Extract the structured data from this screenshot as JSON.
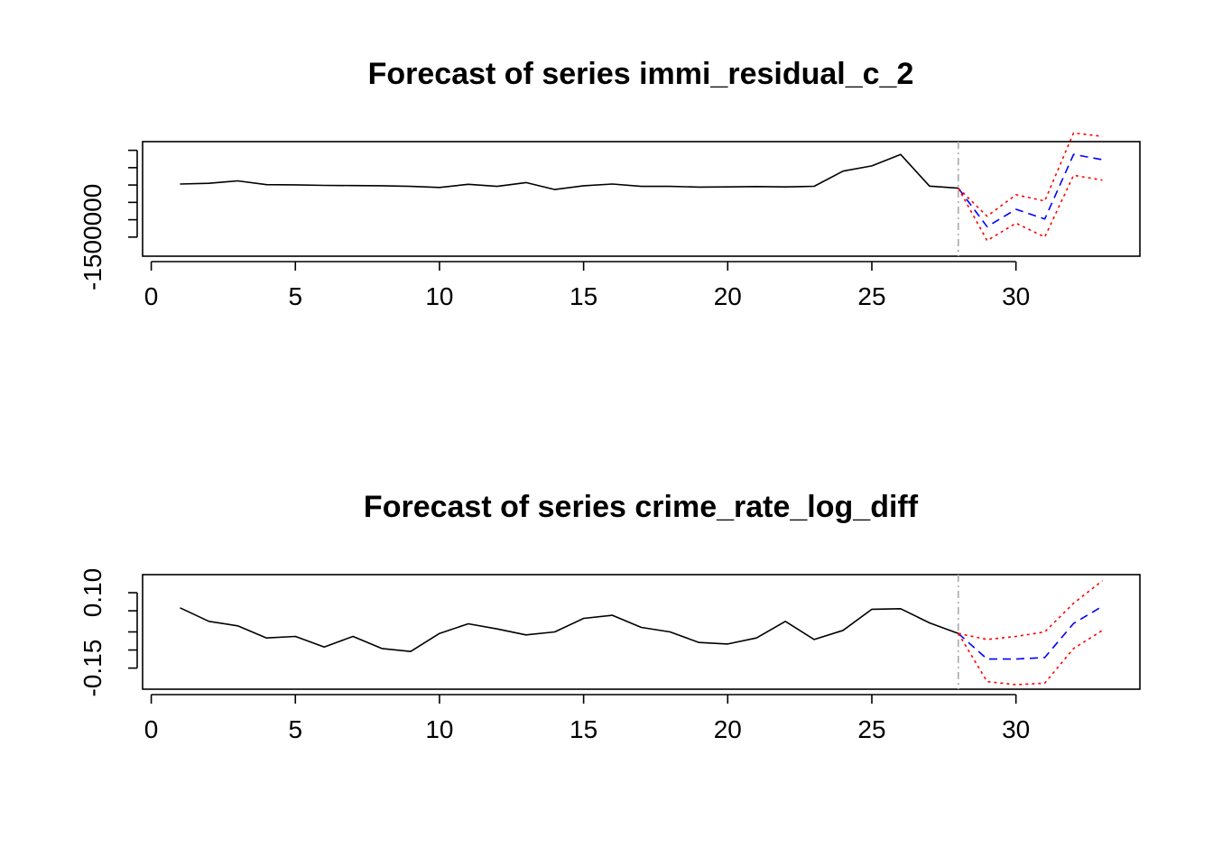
{
  "chart_data": [
    {
      "type": "line",
      "title": "Forecast of series immi_residual_c_2",
      "xlabel": "",
      "ylabel": "",
      "xlim": [
        -0.3,
        34.3
      ],
      "ylim": [
        -2050000,
        1250000
      ],
      "x_ticks": [
        0,
        5,
        10,
        15,
        20,
        25,
        30
      ],
      "y_ticks": [
        -1500000,
        -1000000,
        -500000,
        0,
        500000,
        1000000
      ],
      "y_tick_labels": [
        "-1500000",
        "",
        "",
        "",
        "",
        ""
      ],
      "forecast_origin": 28,
      "colors": {
        "observed": "#000000",
        "forecast": "#0000ff",
        "interval": "#ff0000",
        "origin": "#aaaaaa"
      },
      "series": [
        {
          "role": "observed",
          "x": [
            1,
            2,
            3,
            4,
            5,
            6,
            7,
            8,
            9,
            10,
            11,
            12,
            13,
            14,
            15,
            16,
            17,
            18,
            19,
            20,
            21,
            22,
            23,
            24,
            25,
            26,
            27,
            28
          ],
          "values": [
            30000,
            50000,
            120000,
            10000,
            5000,
            -10000,
            -15000,
            -20000,
            -40000,
            -70000,
            20000,
            -40000,
            70000,
            -130000,
            -20000,
            30000,
            -40000,
            -40000,
            -60000,
            -55000,
            -45000,
            -55000,
            -35000,
            400000,
            550000,
            880000,
            -30000,
            -90000
          ]
        },
        {
          "role": "forecast",
          "x": [
            28,
            29,
            30,
            31,
            32,
            33
          ],
          "values": [
            -90000,
            -1200000,
            -700000,
            -980000,
            880000,
            730000
          ]
        },
        {
          "role": "upper",
          "x": [
            28,
            29,
            30,
            31,
            32,
            33
          ],
          "values": [
            -90000,
            -900000,
            -280000,
            -460000,
            1500000,
            1400000
          ]
        },
        {
          "role": "lower",
          "x": [
            28,
            29,
            30,
            31,
            32,
            33
          ],
          "values": [
            -90000,
            -1600000,
            -1100000,
            -1500000,
            280000,
            140000
          ]
        }
      ]
    },
    {
      "type": "line",
      "title": "Forecast of series crime_rate_log_diff",
      "xlabel": "",
      "ylabel": "",
      "xlim": [
        -0.3,
        34.3
      ],
      "ylim": [
        -0.22,
        0.16
      ],
      "x_ticks": [
        0,
        5,
        10,
        15,
        20,
        25,
        30
      ],
      "y_ticks": [
        -0.15,
        -0.09,
        -0.03,
        0.04,
        0.1
      ],
      "y_tick_labels": [
        "-0.15",
        "",
        "",
        "",
        "0.10"
      ],
      "forecast_origin": 28,
      "colors": {
        "observed": "#000000",
        "forecast": "#0000ff",
        "interval": "#ff0000",
        "origin": "#aaaaaa"
      },
      "series": [
        {
          "role": "observed",
          "x": [
            1,
            2,
            3,
            4,
            5,
            6,
            7,
            8,
            9,
            10,
            11,
            12,
            13,
            14,
            15,
            16,
            17,
            18,
            19,
            20,
            21,
            22,
            23,
            24,
            25,
            26,
            27,
            28
          ],
          "values": [
            0.05,
            0.005,
            -0.01,
            -0.05,
            -0.045,
            -0.08,
            -0.045,
            -0.085,
            -0.095,
            -0.035,
            -0.003,
            -0.02,
            -0.04,
            -0.03,
            0.015,
            0.025,
            -0.015,
            -0.03,
            -0.065,
            -0.07,
            -0.05,
            0.005,
            -0.055,
            -0.025,
            0.045,
            0.047,
            0.0,
            -0.035
          ]
        },
        {
          "role": "forecast",
          "x": [
            28,
            29,
            30,
            31,
            32,
            33
          ],
          "values": [
            -0.035,
            -0.12,
            -0.12,
            -0.115,
            -0.002,
            0.055
          ]
        },
        {
          "role": "upper",
          "x": [
            28,
            29,
            30,
            31,
            32,
            33
          ],
          "values": [
            -0.035,
            -0.055,
            -0.045,
            -0.03,
            0.065,
            0.14
          ]
        },
        {
          "role": "lower",
          "x": [
            28,
            29,
            30,
            31,
            32,
            33
          ],
          "values": [
            -0.035,
            -0.195,
            -0.205,
            -0.2,
            -0.085,
            -0.025
          ]
        }
      ]
    }
  ]
}
